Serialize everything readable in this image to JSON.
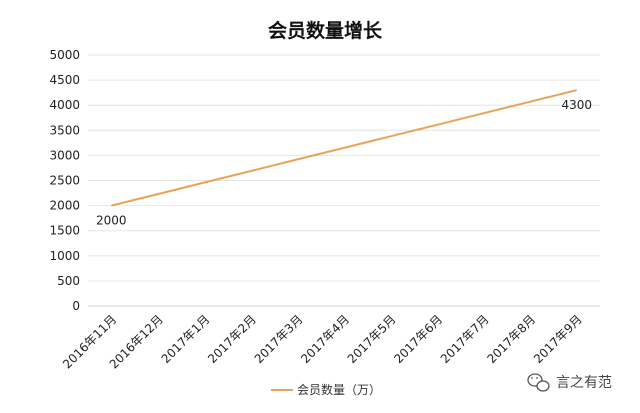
{
  "chart_data": {
    "type": "line",
    "title": "会员数量增长",
    "categories": [
      "2016年11月",
      "2016年12月",
      "2017年1月",
      "2017年2月",
      "2017年3月",
      "2017年4月",
      "2017年5月",
      "2017年6月",
      "2017年7月",
      "2017年8月",
      "2017年9月"
    ],
    "series": [
      {
        "name": "会员数量（万）",
        "values": [
          2000,
          2230,
          2460,
          2690,
          2920,
          3150,
          3380,
          3610,
          3840,
          4070,
          4300
        ],
        "color": "#E8A35A"
      }
    ],
    "data_labels": [
      {
        "index": 0,
        "text": "2000"
      },
      {
        "index": 10,
        "text": "4300"
      }
    ],
    "ylim": [
      0,
      5000
    ],
    "yticks": [
      0,
      500,
      1000,
      1500,
      2000,
      2500,
      3000,
      3500,
      4000,
      4500,
      5000
    ],
    "grid": true,
    "legend_position": "bottom"
  },
  "watermark": {
    "text": "言之有范",
    "icon": "wechat-icon"
  }
}
